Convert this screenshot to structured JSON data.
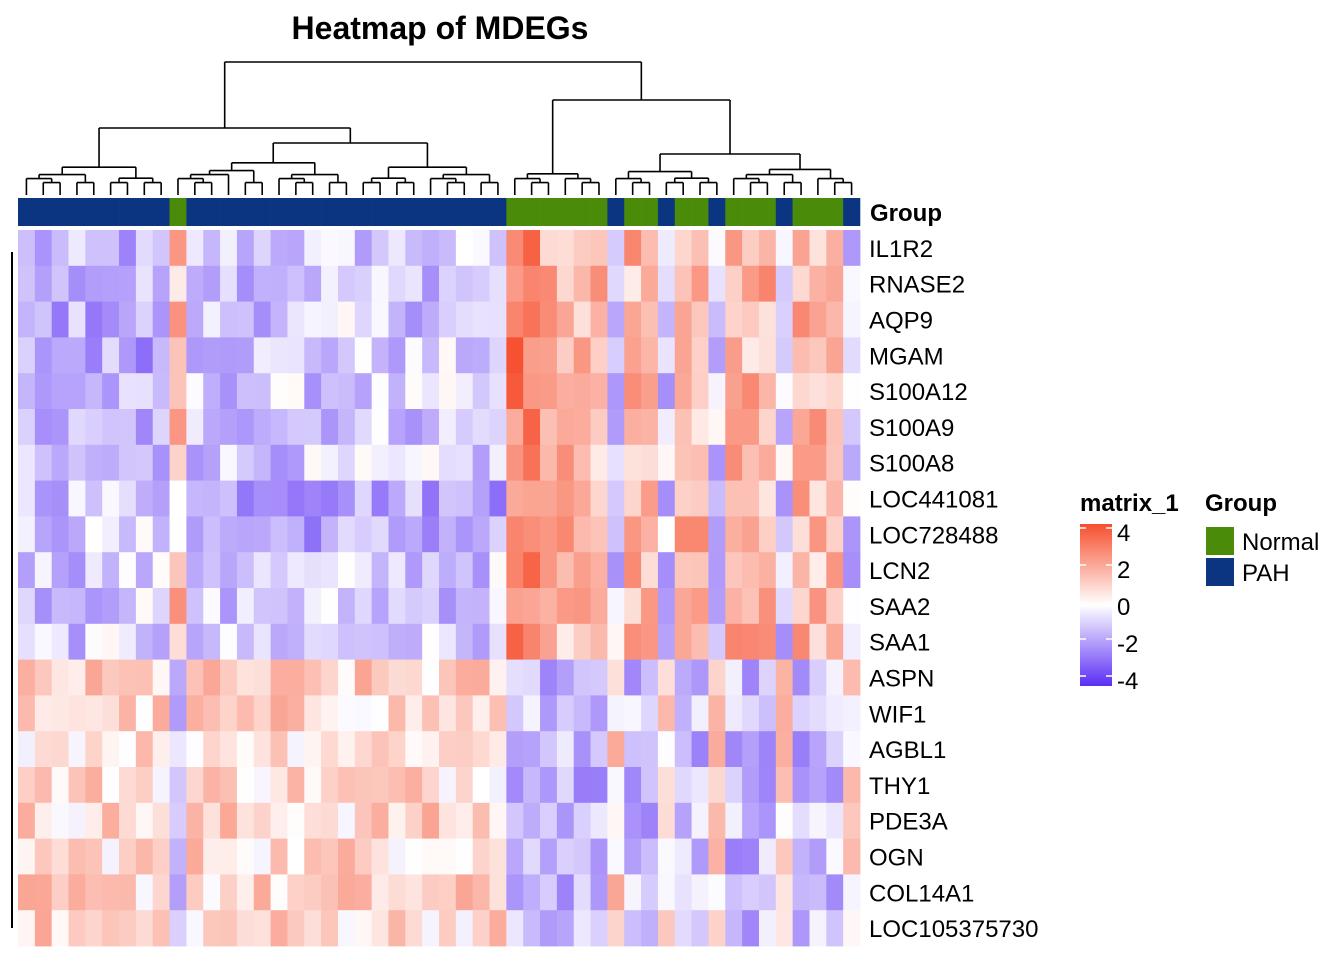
{
  "title": "Heatmap of MDEGs",
  "colors": {
    "low": "#5b2ef5",
    "mid": "#ffffff",
    "high": "#f64f2e",
    "normal": "#4a8c0a",
    "pah": "#0b3580"
  },
  "chart_data": {
    "type": "heatmap",
    "title": "Heatmap of MDEGs",
    "rows": [
      "IL1R2",
      "RNASE2",
      "AQP9",
      "MGAM",
      "S100A12",
      "S100A9",
      "S100A8",
      "LOC441081",
      "LOC728488",
      "LCN2",
      "SAA2",
      "SAA1",
      "ASPN",
      "WIF1",
      "AGBL1",
      "THY1",
      "PDE3A",
      "OGN",
      "COL14A1",
      "LOC105375730"
    ],
    "row_groups": {
      "up_in_normal": 12,
      "down_in_normal": 8
    },
    "columns": {
      "count": 50,
      "group_annotation": [
        "PAH",
        "PAH",
        "PAH",
        "PAH",
        "PAH",
        "PAH",
        "PAH",
        "PAH",
        "PAH",
        "Normal",
        "PAH",
        "PAH",
        "PAH",
        "PAH",
        "PAH",
        "PAH",
        "PAH",
        "PAH",
        "PAH",
        "PAH",
        "PAH",
        "PAH",
        "PAH",
        "PAH",
        "PAH",
        "PAH",
        "PAH",
        "PAH",
        "PAH",
        "Normal",
        "Normal",
        "Normal",
        "Normal",
        "Normal",
        "Normal",
        "PAH",
        "Normal",
        "Normal",
        "PAH",
        "Normal",
        "Normal",
        "PAH",
        "Normal",
        "Normal",
        "Normal",
        "PAH",
        "Normal",
        "Normal",
        "Normal",
        "PAH"
      ]
    },
    "color_scale": {
      "name": "matrix_1",
      "min": -4,
      "max": 4,
      "ticks": [
        "4",
        "2",
        "0",
        "-2",
        "-4"
      ]
    },
    "annotation_legend": {
      "name": "Group",
      "entries": [
        {
          "label": "Normal",
          "color": "#4a8c0a"
        },
        {
          "label": "PAH",
          "color": "#0b3580"
        }
      ]
    },
    "grid": false,
    "legend_position": "right"
  }
}
